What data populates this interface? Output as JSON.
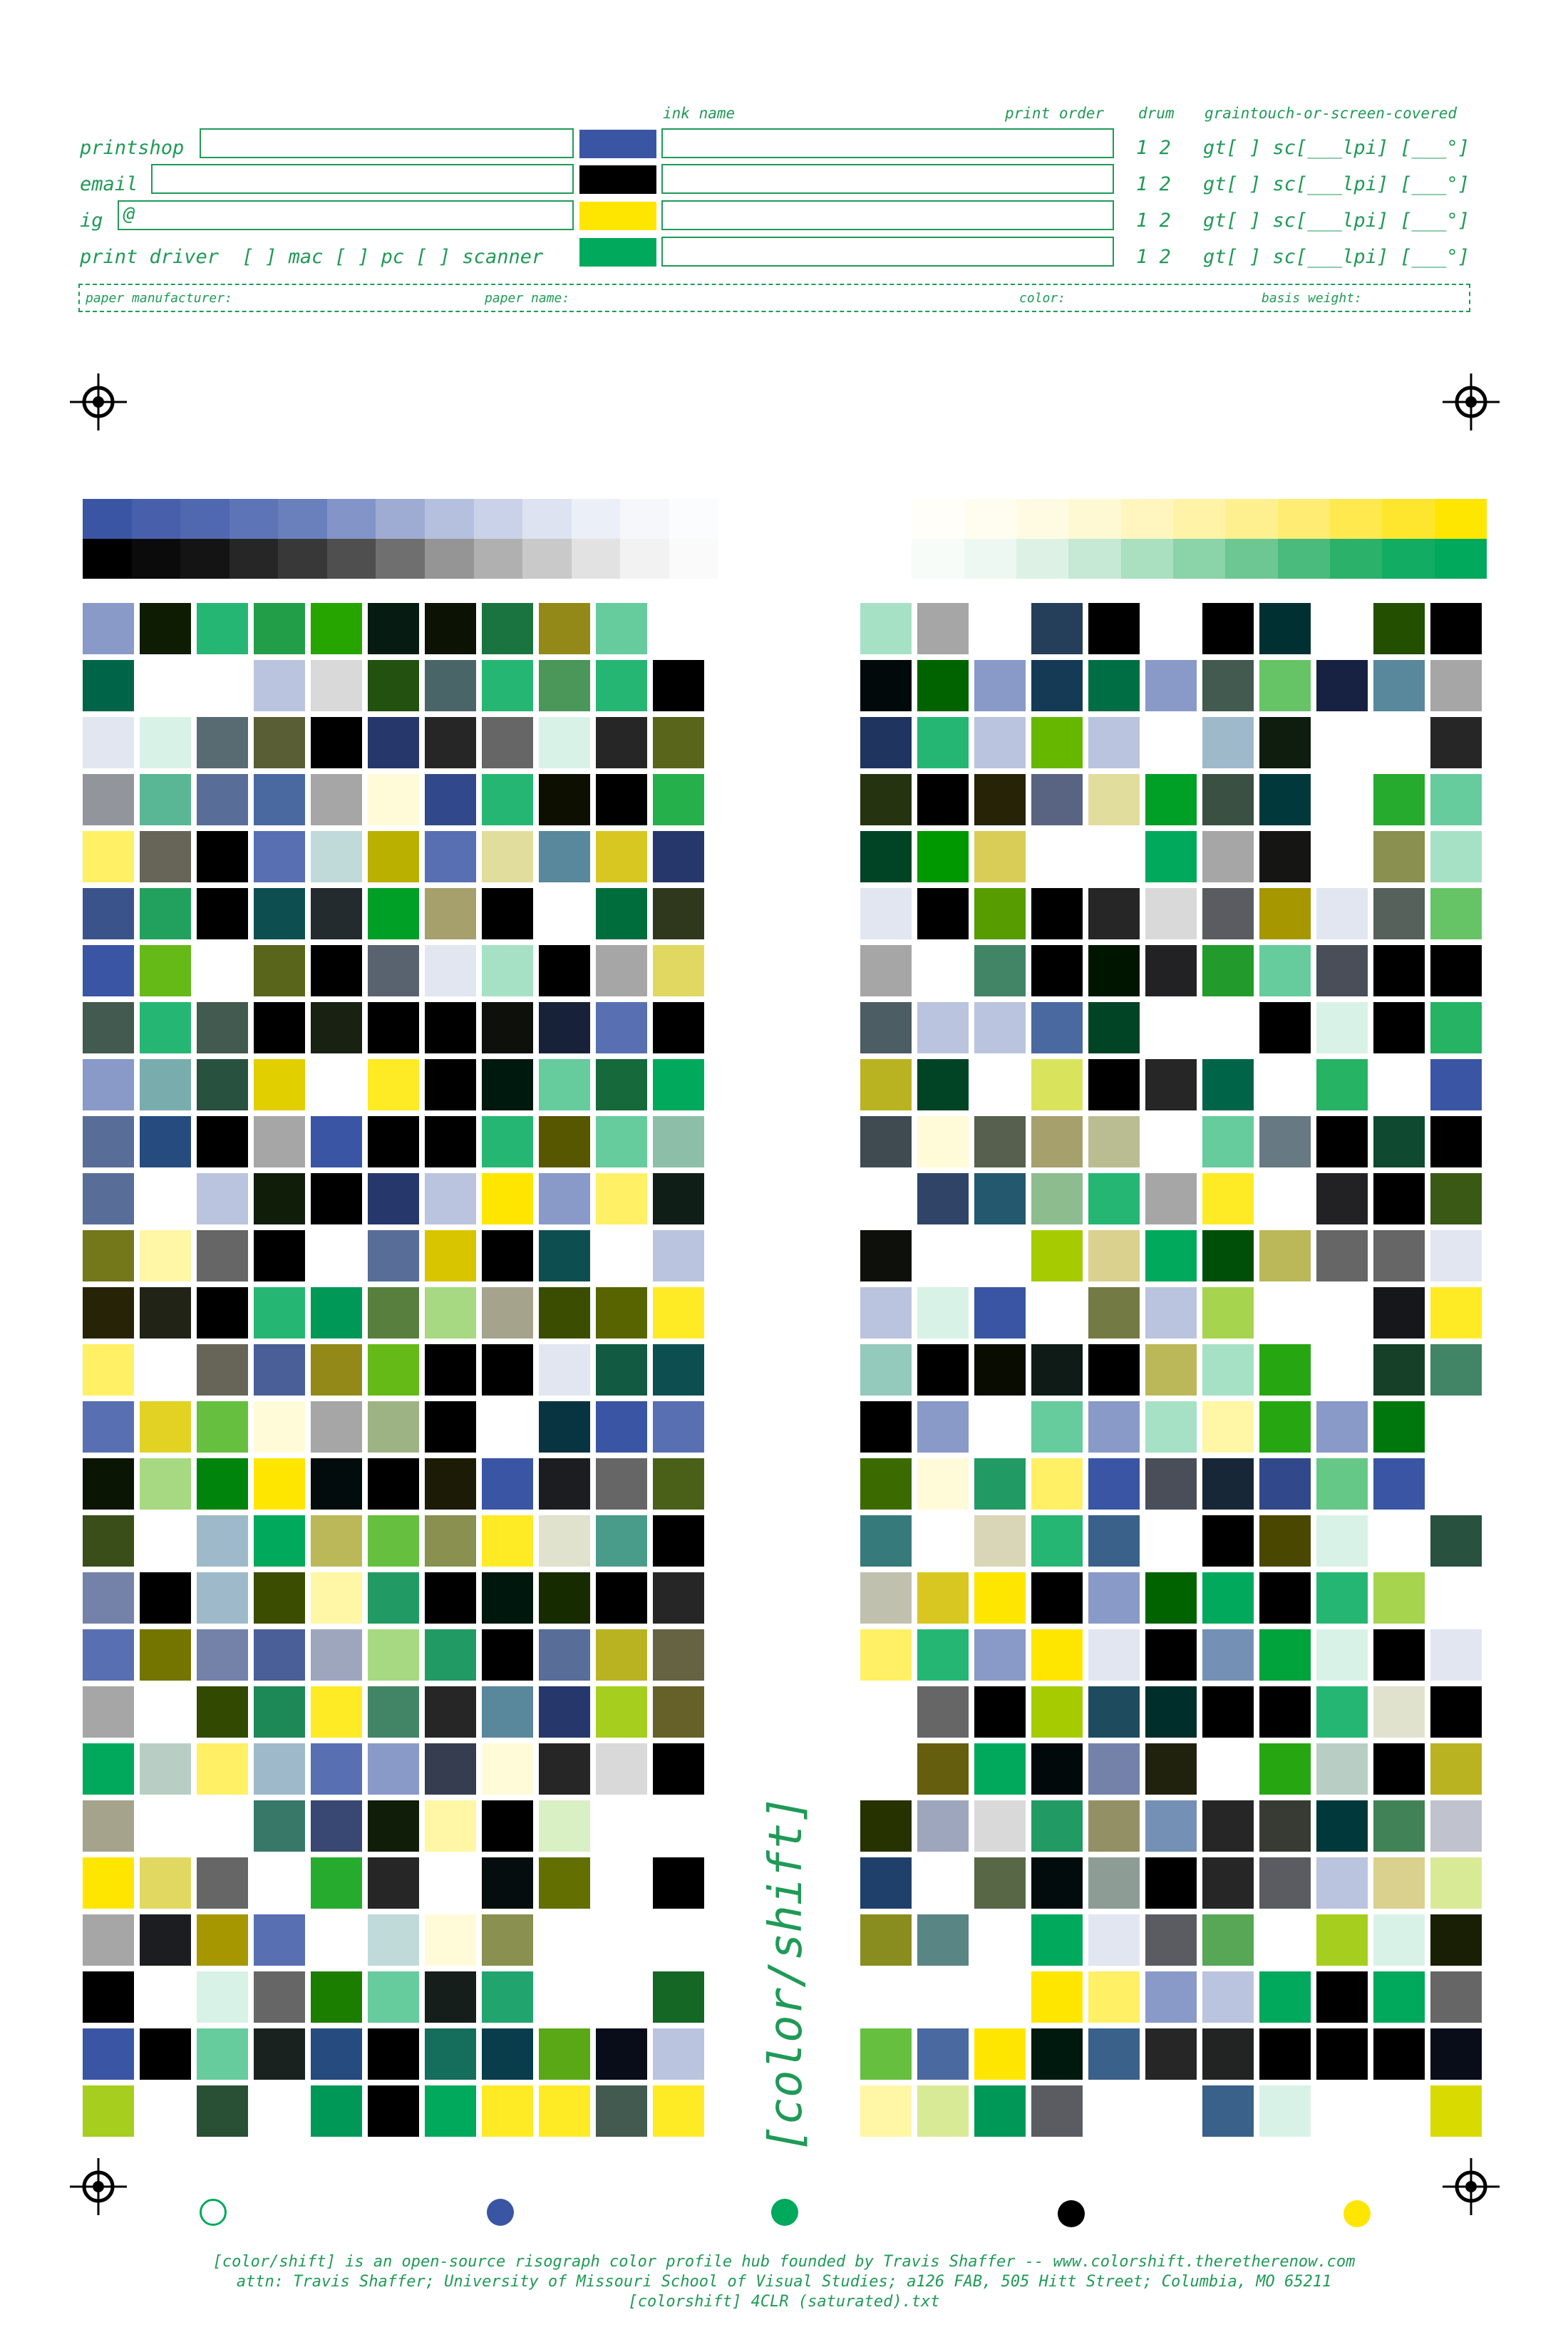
{
  "header": {
    "col_ink_name": "ink name",
    "col_print_order": "print order",
    "col_drum": "drum",
    "col_cover": "graintouch-or-screen-covered",
    "labels": {
      "printshop": "printshop",
      "email": "email",
      "ig": "ig",
      "ig_prefix": "@",
      "print_driver": "print driver  [ ] mac [ ] pc [ ] scanner"
    },
    "rows": [
      {
        "drum": "1 2",
        "cover": "gt[ ]  sc[___lpi] [___°]",
        "ink_color": "#3a55a4"
      },
      {
        "drum": "1 2",
        "cover": "gt[ ]  sc[___lpi] [___°]",
        "ink_color": "#000000"
      },
      {
        "drum": "1 2",
        "cover": "gt[ ]  sc[___lpi] [___°]",
        "ink_color": "#ffe600"
      },
      {
        "drum": "1 2",
        "cover": "gt[ ]  sc[___lpi] [___°]",
        "ink_color": "#00a95c"
      }
    ],
    "paper": {
      "manufacturer": "paper manufacturer:",
      "name": "paper name:",
      "color": "color:",
      "weight": "basis weight:"
    }
  },
  "side_label": "[color/shift]",
  "ink_dots": [
    {
      "name": "outline",
      "color": "#00a95c",
      "hollow": true
    },
    {
      "name": "blue",
      "color": "#3a55a4",
      "hollow": false
    },
    {
      "name": "green",
      "color": "#00a95c",
      "hollow": false
    },
    {
      "name": "black",
      "color": "#000000",
      "hollow": false
    },
    {
      "name": "yellow",
      "color": "#ffe600",
      "hollow": false
    }
  ],
  "footer": {
    "line1": "[color/shift] is an open-source risograph color profile hub founded by Travis Shaffer -- www.colorshift.theretherenow.com",
    "line2": "attn: Travis Shaffer; University of Missouri School of Visual Studies; a126 FAB, 505 Hitt Street; Columbia, MO 65211",
    "line3": "[colorshift] 4CLR (saturated).txt"
  },
  "colors": {
    "accent": "#1f9a57",
    "blue": "#3a55a4",
    "black": "#000000",
    "yellow": "#ffe600",
    "green": "#00a95c"
  }
}
